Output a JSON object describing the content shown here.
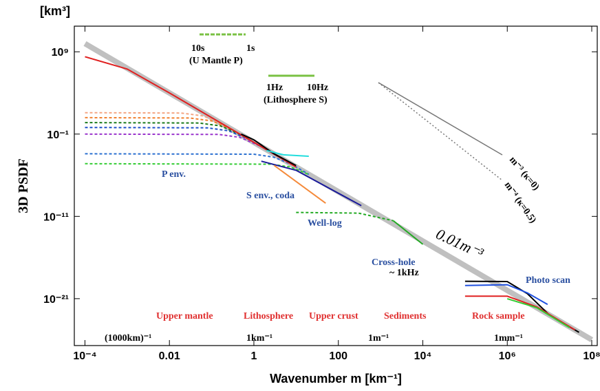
{
  "chart_data": {
    "type": "line",
    "unit_label": "[km³]",
    "ylabel": "3D PSDF",
    "xlabel": "Wavenumber m [km⁻¹]",
    "log_x": true,
    "log_y": true,
    "xlim": [
      5.6e-05,
      135000000.0
    ],
    "ylim": [
      2e-27,
      1300000000000.0
    ],
    "xticks": [
      {
        "value": 0.0001,
        "label": "10⁻⁴"
      },
      0.01,
      1,
      100,
      {
        "value": 10000.0,
        "label": "10⁴"
      },
      {
        "value": 1000000.0,
        "label": "10⁶"
      },
      {
        "value": 100000000.0,
        "label": "10⁸"
      }
    ],
    "yticks": [
      {
        "value": 1000000000.0,
        "label": "10⁹"
      },
      {
        "value": 0.1,
        "label": "10⁻¹"
      },
      {
        "value": 1e-11,
        "label": "10⁻¹¹"
      },
      {
        "value": 1e-21,
        "label": "10⁻²¹"
      }
    ],
    "series": [
      {
        "color": "#c0c0c0",
        "width": 8,
        "dash": false,
        "x": [
          0.0001,
          100000000.0
        ],
        "values": [
          10000000000.0,
          1e-26
        ]
      },
      {
        "color": "#f4a582",
        "dash": true,
        "x": [
          0.0001,
          0.019,
          0.063,
          0.19,
          3
        ],
        "values": [
          40,
          36,
          16,
          1.46,
          0.00037
        ]
      },
      {
        "color": "#f08030",
        "dash": true,
        "x": [
          0.0001,
          0.03,
          0.1,
          0.3,
          3
        ],
        "values": [
          10,
          9,
          4,
          0.37,
          0.00037
        ]
      },
      {
        "color": "#1a7a1a",
        "dash": true,
        "x": [
          0.0001,
          0.05,
          0.16,
          0.5,
          5
        ],
        "values": [
          2.5,
          2.2,
          1.0,
          0.08,
          8e-05
        ]
      },
      {
        "color": "#1f50c8",
        "dash": true,
        "x": [
          0.0001,
          0.08,
          0.25,
          0.75,
          7
        ],
        "values": [
          0.63,
          0.57,
          0.25,
          0.024,
          2.9e-05
        ]
      },
      {
        "color": "#9933cc",
        "dash": true,
        "x": [
          0.0001,
          0.15,
          0.46,
          1.4,
          10
        ],
        "values": [
          0.1,
          0.09,
          0.04,
          0.0036,
          1e-05
        ]
      },
      {
        "color": "#2a6fd0",
        "dash": true,
        "x": [
          0.0001,
          1,
          2.9,
          8,
          20
        ],
        "values": [
          0.0004,
          0.00036,
          0.00016,
          2e-05,
          1.25e-06
        ]
      },
      {
        "color": "#33cc33",
        "dash": true,
        "x": [
          0.0001,
          2.5,
          7.4,
          20
        ],
        "values": [
          2.5e-05,
          2.2e-05,
          1e-05,
          1.25e-06
        ]
      },
      {
        "color": "#e02020",
        "dash": false,
        "x": [
          0.0001,
          0.001,
          0.01,
          0.1,
          1,
          10
        ],
        "values": [
          250000000.0,
          8000000.0,
          10000.0,
          10,
          0.01,
          1e-05
        ]
      },
      {
        "color": "#000000",
        "dash": false,
        "x": [
          0.5,
          1,
          3,
          10
        ],
        "values": [
          0.1,
          0.02,
          0.0004,
          1.5e-05
        ]
      },
      {
        "color": "#22dddd",
        "dash": false,
        "x": [
          2,
          5,
          20
        ],
        "values": [
          0.001,
          0.0003,
          0.0002
        ]
      },
      {
        "color": "#1a1a9a",
        "dash": false,
        "x": [
          1.5,
          10,
          350
        ],
        "values": [
          5e-05,
          4e-06,
          2e-10
        ]
      },
      {
        "color": "#f58a3a",
        "dash": false,
        "x": [
          3,
          50
        ],
        "values": [
          1.6e-05,
          4e-10
        ]
      },
      {
        "color": "#22aa22",
        "dash": true,
        "x": [
          10,
          300,
          2000
        ],
        "values": [
          3e-11,
          2.5e-11,
          3e-12
        ]
      },
      {
        "color": "#22aa22",
        "dash": false,
        "x": [
          2000,
          10000
        ],
        "values": [
          3e-12,
          4e-15
        ]
      },
      {
        "color": "#000000",
        "dash": false,
        "x": [
          100000.0,
          1000000.0,
          3000000.0,
          10000000.0,
          50000000.0
        ],
        "values": [
          1.3e-19,
          1.2e-19,
          4e-21,
          1e-23,
          8e-26
        ]
      },
      {
        "color": "#1f50e0",
        "dash": false,
        "x": [
          100000.0,
          1000000.0,
          3000000.0,
          9000000.0
        ],
        "values": [
          4e-20,
          5e-20,
          5e-21,
          2e-22
        ]
      },
      {
        "color": "#e02020",
        "dash": false,
        "x": [
          100000.0,
          1000000.0,
          5000000.0,
          40000000.0
        ],
        "values": [
          2e-21,
          2e-21,
          1e-22,
          1.6e-25
        ]
      },
      {
        "color": "#33cc33",
        "dash": false,
        "x": [
          1000000.0,
          5000000.0,
          30000000.0
        ],
        "values": [
          1e-21,
          8e-23,
          3e-25
        ]
      }
    ],
    "annotations": [
      "10s",
      "1s",
      "(U Mantle  P)",
      "1Hz",
      "10Hz",
      "(Lithosphere S)",
      "m⁻³ (κ=0)",
      "m⁻⁴ (κ=0.5)",
      "0.01m⁻³",
      "P env.",
      "S env., coda",
      "Well-log",
      "Cross-hole",
      "~ 1kHz",
      "Photo scan",
      "Upper mantle",
      "Lithosphere",
      "Upper crust",
      "Sediments",
      "Rock sample",
      "(1000km)⁻¹",
      "1km⁻¹",
      "1m⁻¹",
      "1mm⁻¹"
    ]
  }
}
